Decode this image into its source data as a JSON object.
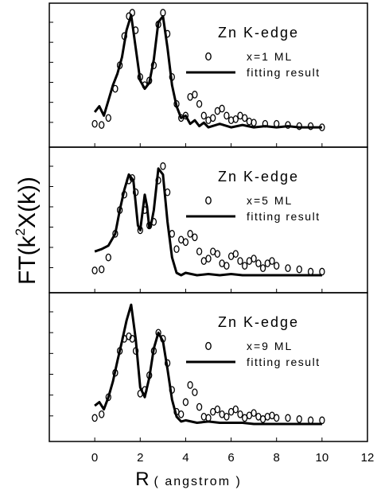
{
  "figure": {
    "ylabel_main": "FT(k",
    "ylabel_sup": "2",
    "ylabel_tail": "X(k))",
    "xlabel_main": "R",
    "xlabel_unit": "( angstrom )"
  },
  "chart_data": [
    {
      "type": "line",
      "panel_label": "Zn K-edge",
      "xlim": [
        -2,
        12
      ],
      "x_ticks": [
        "0",
        "2",
        "4",
        "6",
        "8",
        "10",
        "12"
      ],
      "y_ticks_shown": false,
      "series": [
        {
          "name": "x=1 ML",
          "marker": "open-circle",
          "x": [
            0,
            0.3,
            0.6,
            0.9,
            1.1,
            1.3,
            1.5,
            1.65,
            1.8,
            2.0,
            2.2,
            2.4,
            2.6,
            2.8,
            3.0,
            3.2,
            3.4,
            3.6,
            3.8,
            4.0,
            4.2,
            4.4,
            4.6,
            4.8,
            5.0,
            5.2,
            5.4,
            5.6,
            5.8,
            6.0,
            6.2,
            6.4,
            6.6,
            6.8,
            7.0,
            7.5,
            8.0,
            8.5,
            9.0,
            9.5,
            10.0
          ],
          "y": [
            0.05,
            0.04,
            0.1,
            0.35,
            0.55,
            0.8,
            0.97,
            1.0,
            0.85,
            0.45,
            0.38,
            0.42,
            0.55,
            0.9,
            1.0,
            0.82,
            0.45,
            0.22,
            0.1,
            0.12,
            0.28,
            0.3,
            0.22,
            0.12,
            0.08,
            0.1,
            0.16,
            0.18,
            0.12,
            0.08,
            0.09,
            0.12,
            0.1,
            0.07,
            0.06,
            0.05,
            0.05,
            0.04,
            0.03,
            0.03,
            0.02
          ]
        },
        {
          "name": "fitting result",
          "marker": "line",
          "x": [
            0,
            0.2,
            0.4,
            0.6,
            0.8,
            1.0,
            1.2,
            1.4,
            1.6,
            1.8,
            2.0,
            2.2,
            2.4,
            2.6,
            2.8,
            3.0,
            3.2,
            3.4,
            3.6,
            3.8,
            4.0,
            4.2,
            4.4,
            4.6,
            4.8,
            5.0,
            5.5,
            6.0,
            6.5,
            7.0,
            7.5,
            8.0,
            8.5,
            9.0,
            9.5,
            10.0
          ],
          "y": [
            0.15,
            0.2,
            0.12,
            0.25,
            0.38,
            0.48,
            0.62,
            0.85,
            0.98,
            0.7,
            0.42,
            0.35,
            0.4,
            0.6,
            0.92,
            0.97,
            0.7,
            0.38,
            0.2,
            0.1,
            0.12,
            0.05,
            0.08,
            0.03,
            0.06,
            0.02,
            0.05,
            0.02,
            0.04,
            0.02,
            0.03,
            0.02,
            0.03,
            0.02,
            0.02,
            0.02
          ]
        }
      ]
    },
    {
      "type": "line",
      "panel_label": "Zn K-edge",
      "xlim": [
        -2,
        12
      ],
      "x_ticks": [
        "0",
        "2",
        "4",
        "6",
        "8",
        "10",
        "12"
      ],
      "y_ticks_shown": false,
      "series": [
        {
          "name": "x=5 ML",
          "marker": "open-circle",
          "x": [
            0,
            0.3,
            0.6,
            0.9,
            1.1,
            1.3,
            1.5,
            1.65,
            1.8,
            2.0,
            2.2,
            2.4,
            2.6,
            2.8,
            3.0,
            3.2,
            3.4,
            3.6,
            3.8,
            4.0,
            4.2,
            4.4,
            4.6,
            4.8,
            5.0,
            5.2,
            5.4,
            5.6,
            5.8,
            6.0,
            6.2,
            6.4,
            6.6,
            6.8,
            7.0,
            7.2,
            7.4,
            7.6,
            7.8,
            8.0,
            8.5,
            9.0,
            9.5,
            10.0
          ],
          "y": [
            0.04,
            0.05,
            0.15,
            0.35,
            0.55,
            0.68,
            0.8,
            0.82,
            0.7,
            0.38,
            0.55,
            0.42,
            0.45,
            0.8,
            0.92,
            0.7,
            0.35,
            0.22,
            0.3,
            0.28,
            0.35,
            0.32,
            0.2,
            0.12,
            0.14,
            0.2,
            0.18,
            0.1,
            0.08,
            0.16,
            0.18,
            0.12,
            0.08,
            0.12,
            0.14,
            0.1,
            0.06,
            0.1,
            0.12,
            0.08,
            0.06,
            0.05,
            0.03,
            0.03
          ]
        },
        {
          "name": "fitting result",
          "marker": "line",
          "x": [
            0,
            0.3,
            0.6,
            0.9,
            1.1,
            1.3,
            1.5,
            1.7,
            1.9,
            2.0,
            2.2,
            2.3,
            2.4,
            2.5,
            2.6,
            2.8,
            3.0,
            3.2,
            3.4,
            3.6,
            3.8,
            4.0,
            4.5,
            5.0,
            5.5,
            6.0,
            6.5,
            7.0,
            8.0,
            9.0,
            10.0
          ],
          "y": [
            0.2,
            0.22,
            0.25,
            0.35,
            0.55,
            0.72,
            0.85,
            0.8,
            0.42,
            0.38,
            0.68,
            0.58,
            0.4,
            0.45,
            0.55,
            0.9,
            0.85,
            0.45,
            0.15,
            0.02,
            0.0,
            0.02,
            0.0,
            0.01,
            0.0,
            0.01,
            0.0,
            0.0,
            0.0,
            0.0,
            0.0
          ]
        }
      ]
    },
    {
      "type": "line",
      "panel_label": "Zn K-edge",
      "xlim": [
        -2,
        12
      ],
      "x_ticks": [
        "0",
        "2",
        "4",
        "6",
        "8",
        "10",
        "12"
      ],
      "y_ticks_shown": false,
      "series": [
        {
          "name": "x=9 ML",
          "marker": "open-circle",
          "x": [
            0,
            0.3,
            0.6,
            0.9,
            1.1,
            1.3,
            1.5,
            1.65,
            1.8,
            2.0,
            2.2,
            2.4,
            2.6,
            2.8,
            3.0,
            3.2,
            3.4,
            3.6,
            3.8,
            4.0,
            4.2,
            4.4,
            4.6,
            4.8,
            5.0,
            5.2,
            5.4,
            5.6,
            5.8,
            6.0,
            6.2,
            6.4,
            6.6,
            6.8,
            7.0,
            7.2,
            7.4,
            7.6,
            7.8,
            8.0,
            8.5,
            9.0,
            9.5,
            10.0
          ],
          "y": [
            0.05,
            0.08,
            0.22,
            0.42,
            0.6,
            0.7,
            0.72,
            0.7,
            0.6,
            0.25,
            0.28,
            0.4,
            0.6,
            0.75,
            0.7,
            0.5,
            0.28,
            0.1,
            0.08,
            0.18,
            0.32,
            0.26,
            0.14,
            0.06,
            0.05,
            0.1,
            0.12,
            0.08,
            0.06,
            0.1,
            0.12,
            0.08,
            0.05,
            0.07,
            0.09,
            0.06,
            0.04,
            0.06,
            0.07,
            0.05,
            0.05,
            0.04,
            0.03,
            0.03
          ]
        },
        {
          "name": "fitting result",
          "marker": "line",
          "x": [
            0,
            0.2,
            0.4,
            0.6,
            0.8,
            1.0,
            1.2,
            1.4,
            1.6,
            1.8,
            2.0,
            2.2,
            2.4,
            2.6,
            2.8,
            3.0,
            3.2,
            3.4,
            3.6,
            3.8,
            4.0,
            4.5,
            5.0,
            5.5,
            6.0,
            6.5,
            7.0,
            8.0,
            9.0,
            10.0
          ],
          "y": [
            0.15,
            0.18,
            0.12,
            0.22,
            0.35,
            0.52,
            0.68,
            0.85,
            0.98,
            0.7,
            0.3,
            0.22,
            0.38,
            0.62,
            0.75,
            0.68,
            0.45,
            0.2,
            0.06,
            0.02,
            0.03,
            0.01,
            0.02,
            0.01,
            0.01,
            0.01,
            0.0,
            0.0,
            0.0,
            0.0
          ]
        }
      ]
    }
  ]
}
